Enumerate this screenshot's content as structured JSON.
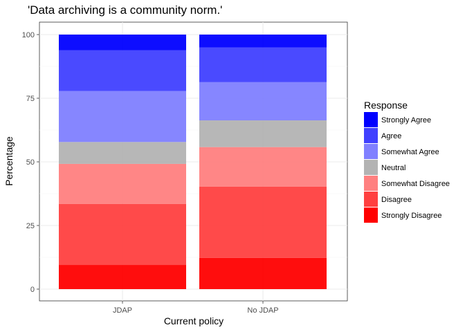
{
  "chart_data": {
    "type": "bar",
    "stacked": true,
    "title": "'Data archiving is a community norm.'",
    "xlabel": "Current policy",
    "ylabel": "Percentage",
    "ylim": [
      0,
      100
    ],
    "yticks": [
      0,
      25,
      50,
      75,
      100
    ],
    "categories": [
      "JDAP",
      "No JDAP"
    ],
    "grid": true,
    "legend": {
      "title": "Response",
      "placement": "right"
    },
    "series": [
      {
        "name": "Strongly Disagree",
        "color": "#ff0000",
        "values": [
          9.5,
          12.3
        ]
      },
      {
        "name": "Disagree",
        "color": "#ff4040",
        "values": [
          24.0,
          28.0
        ]
      },
      {
        "name": "Somewhat Disagree",
        "color": "#ff8080",
        "values": [
          15.7,
          15.5
        ]
      },
      {
        "name": "Neutral",
        "color": "#b3b3b3",
        "values": [
          8.6,
          10.5
        ]
      },
      {
        "name": "Somewhat Agree",
        "color": "#8080ff",
        "values": [
          20.0,
          15.0
        ]
      },
      {
        "name": "Agree",
        "color": "#4040ff",
        "values": [
          16.0,
          13.6
        ]
      },
      {
        "name": "Strongly Agree",
        "color": "#0000ff",
        "values": [
          6.2,
          5.1
        ]
      }
    ],
    "legend_order": [
      "Strongly Agree",
      "Agree",
      "Somewhat Agree",
      "Neutral",
      "Somewhat Disagree",
      "Disagree",
      "Strongly Disagree"
    ]
  }
}
